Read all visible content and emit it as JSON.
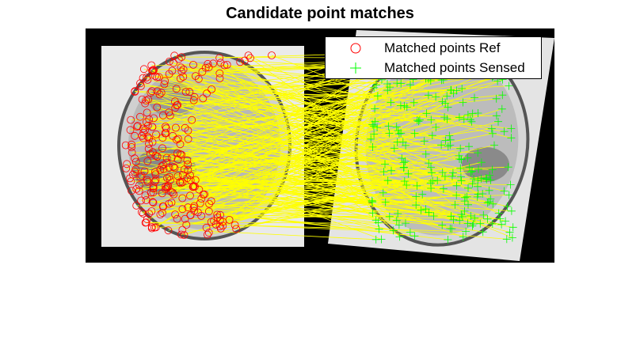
{
  "figure": {
    "title": "Candidate point matches"
  },
  "legend": {
    "items": [
      {
        "label": "Matched points Ref",
        "marker": "circle",
        "color": "#ff0000"
      },
      {
        "label": "Matched points Sensed",
        "marker": "plus",
        "color": "#00ff00"
      }
    ]
  },
  "colors": {
    "background": "#000000",
    "match_lines": "#ffff00",
    "ref_markers": "#ff0000",
    "sensed_markers": "#00ff00"
  }
}
